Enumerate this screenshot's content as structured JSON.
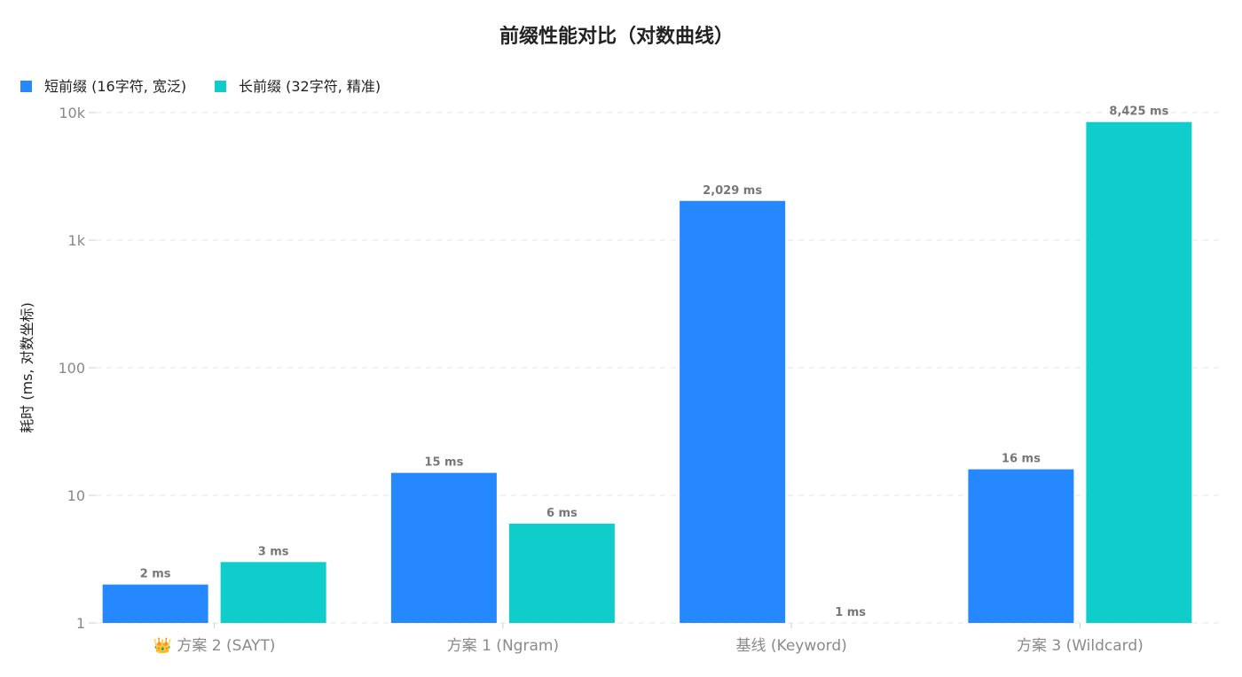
{
  "chart_data": {
    "type": "bar",
    "title": "前缀性能对比（对数曲线）",
    "ylabel": "耗时 (ms, 对数坐标)",
    "xlabel": "",
    "yscale": "log",
    "ylim": [
      1,
      10000
    ],
    "yticks": [
      1,
      10,
      100,
      1000,
      10000
    ],
    "ytick_labels": [
      "1",
      "10",
      "100",
      "1k",
      "10k"
    ],
    "grid": true,
    "legend_position": "top-left",
    "categories": [
      "👑 方案 2 (SAYT)",
      "方案 1 (Ngram)",
      "基线 (Keyword)",
      "方案 3 (Wildcard)"
    ],
    "series": [
      {
        "name": "短前缀 (16字符, 宽泛)",
        "color": "#2688FF",
        "values": [
          2,
          15,
          2029,
          16
        ],
        "labels": [
          "2 ms",
          "15 ms",
          "2,029 ms",
          "16 ms"
        ]
      },
      {
        "name": "长前缀 (32字符, 精准)",
        "color": "#0ECDCB",
        "values": [
          3,
          6,
          1,
          8425
        ],
        "labels": [
          "3 ms",
          "6 ms",
          "1 ms",
          "8,425 ms"
        ]
      }
    ]
  }
}
